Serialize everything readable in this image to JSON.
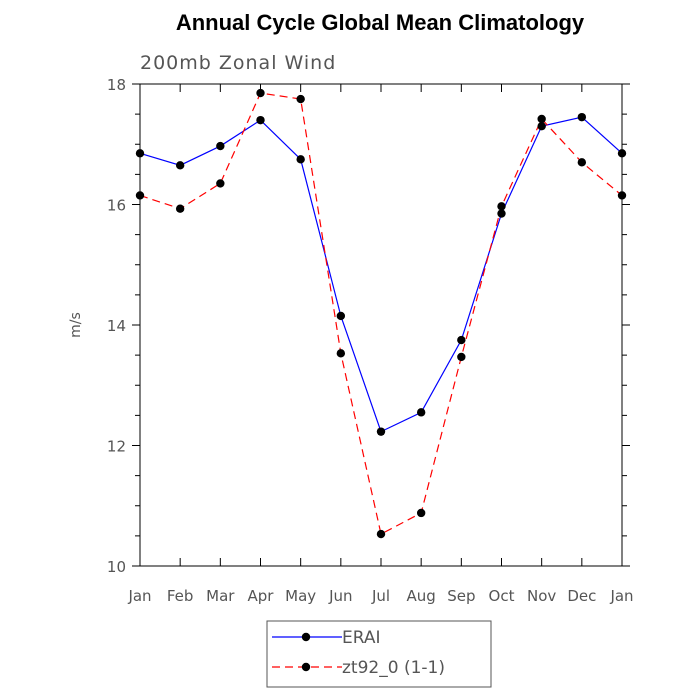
{
  "chart_data": {
    "type": "line",
    "title": "Annual Cycle Global Mean Climatology",
    "subtitle": "200mb Zonal Wind",
    "xlabel": "",
    "ylabel": "m/s",
    "categories": [
      "Jan",
      "Feb",
      "Mar",
      "Apr",
      "May",
      "Jun",
      "Jul",
      "Aug",
      "Sep",
      "Oct",
      "Nov",
      "Dec",
      "Jan"
    ],
    "ylim": [
      10,
      18
    ],
    "yticks": [
      "10",
      "12",
      "14",
      "16",
      "18"
    ],
    "grid": false,
    "legend_position": "bottom",
    "series": [
      {
        "name": "ERAI",
        "color": "#0000ff",
        "dash": "solid",
        "marker": "circle",
        "values": [
          16.85,
          16.65,
          16.97,
          17.4,
          16.75,
          14.15,
          12.23,
          12.55,
          13.75,
          15.85,
          17.3,
          17.45,
          16.85
        ]
      },
      {
        "name": "zt92_0 (1-1)",
        "color": "#ff0000",
        "dash": "dashed",
        "marker": "circle",
        "values": [
          16.15,
          15.93,
          16.35,
          17.85,
          17.75,
          13.53,
          10.53,
          10.88,
          13.47,
          15.97,
          17.42,
          16.7,
          16.15
        ]
      }
    ]
  }
}
